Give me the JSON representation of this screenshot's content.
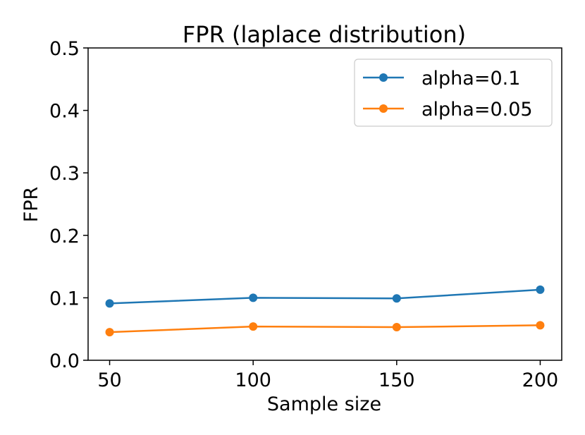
{
  "chart_data": {
    "type": "line",
    "title": "FPR (laplace distribution)",
    "xlabel": "Sample size",
    "ylabel": "FPR",
    "x": [
      50,
      100,
      150,
      200
    ],
    "xticks": [
      "50",
      "100",
      "150",
      "200"
    ],
    "xlim": [
      42.5,
      207.5
    ],
    "ylim": [
      0.0,
      0.5
    ],
    "yticks": [
      "0.0",
      "0.1",
      "0.2",
      "0.3",
      "0.4",
      "0.5"
    ],
    "grid": false,
    "legend_position": "top-right",
    "series": [
      {
        "name": "alpha=0.1",
        "color": "#1f77b4",
        "values": [
          0.091,
          0.1,
          0.099,
          0.113
        ]
      },
      {
        "name": "alpha=0.05",
        "color": "#ff7f0e",
        "values": [
          0.045,
          0.054,
          0.053,
          0.056
        ]
      }
    ]
  }
}
